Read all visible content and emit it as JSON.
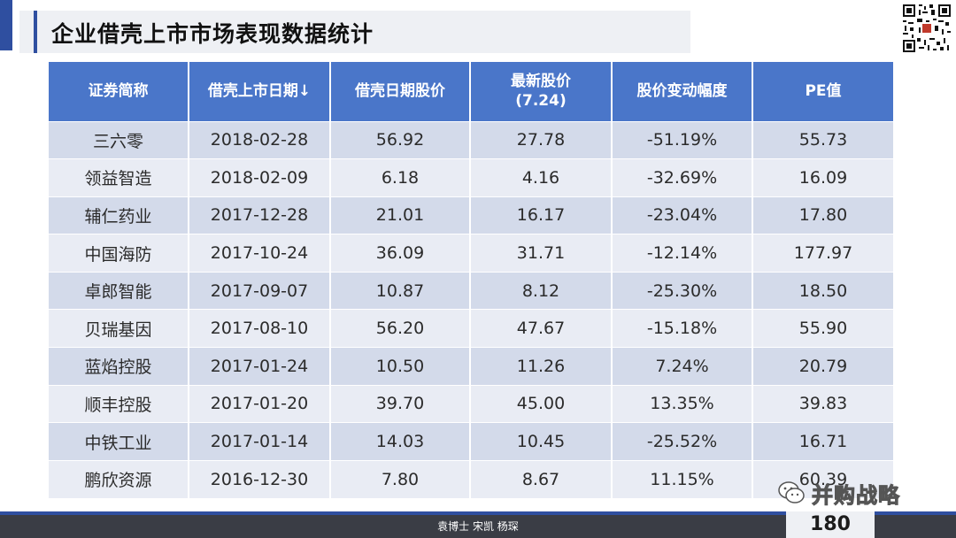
{
  "title": "企业借壳上市市场表现数据统计",
  "table": {
    "headers": [
      [
        "证券简称"
      ],
      [
        "借壳上市日期↓"
      ],
      [
        "借壳日期股价"
      ],
      [
        "最新股价",
        "(7.24)"
      ],
      [
        "股价变动幅度"
      ],
      [
        "PE值"
      ]
    ],
    "rows": [
      [
        "三六零",
        "2018-02-28",
        "56.92",
        "27.78",
        "-51.19%",
        "55.73"
      ],
      [
        "领益智造",
        "2018-02-09",
        "6.18",
        "4.16",
        "-32.69%",
        "16.09"
      ],
      [
        "辅仁药业",
        "2017-12-28",
        "21.01",
        "16.17",
        "-23.04%",
        "17.80"
      ],
      [
        "中国海防",
        "2017-10-24",
        "36.09",
        "31.71",
        "-12.14%",
        "177.97"
      ],
      [
        "卓郎智能",
        "2017-09-07",
        "10.87",
        "8.12",
        "-25.30%",
        "18.50"
      ],
      [
        "贝瑞基因",
        "2017-08-10",
        "56.20",
        "47.67",
        "-15.18%",
        "55.90"
      ],
      [
        "蓝焰控股",
        "2017-01-24",
        "10.50",
        "11.26",
        "7.24%",
        "20.79"
      ],
      [
        "顺丰控股",
        "2017-01-20",
        "39.70",
        "45.00",
        "13.35%",
        "39.83"
      ],
      [
        "中铁工业",
        "2017-01-14",
        "14.03",
        "10.45",
        "-25.52%",
        "16.71"
      ],
      [
        "鹏欣资源",
        "2016-12-30",
        "7.80",
        "8.67",
        "11.15%",
        "60.39"
      ]
    ]
  },
  "watermark": {
    "text": "并购战略",
    "icon": "wechat-icon"
  },
  "footer": {
    "authors": "袁博士  宋凯  杨琛",
    "page_number": "180"
  },
  "colors": {
    "accent": "#2f4fa0",
    "header_bg": "#4a76c9",
    "row_odd": "#d3daea",
    "row_even": "#e9ecf4",
    "footer_bg": "#3a3d45"
  }
}
